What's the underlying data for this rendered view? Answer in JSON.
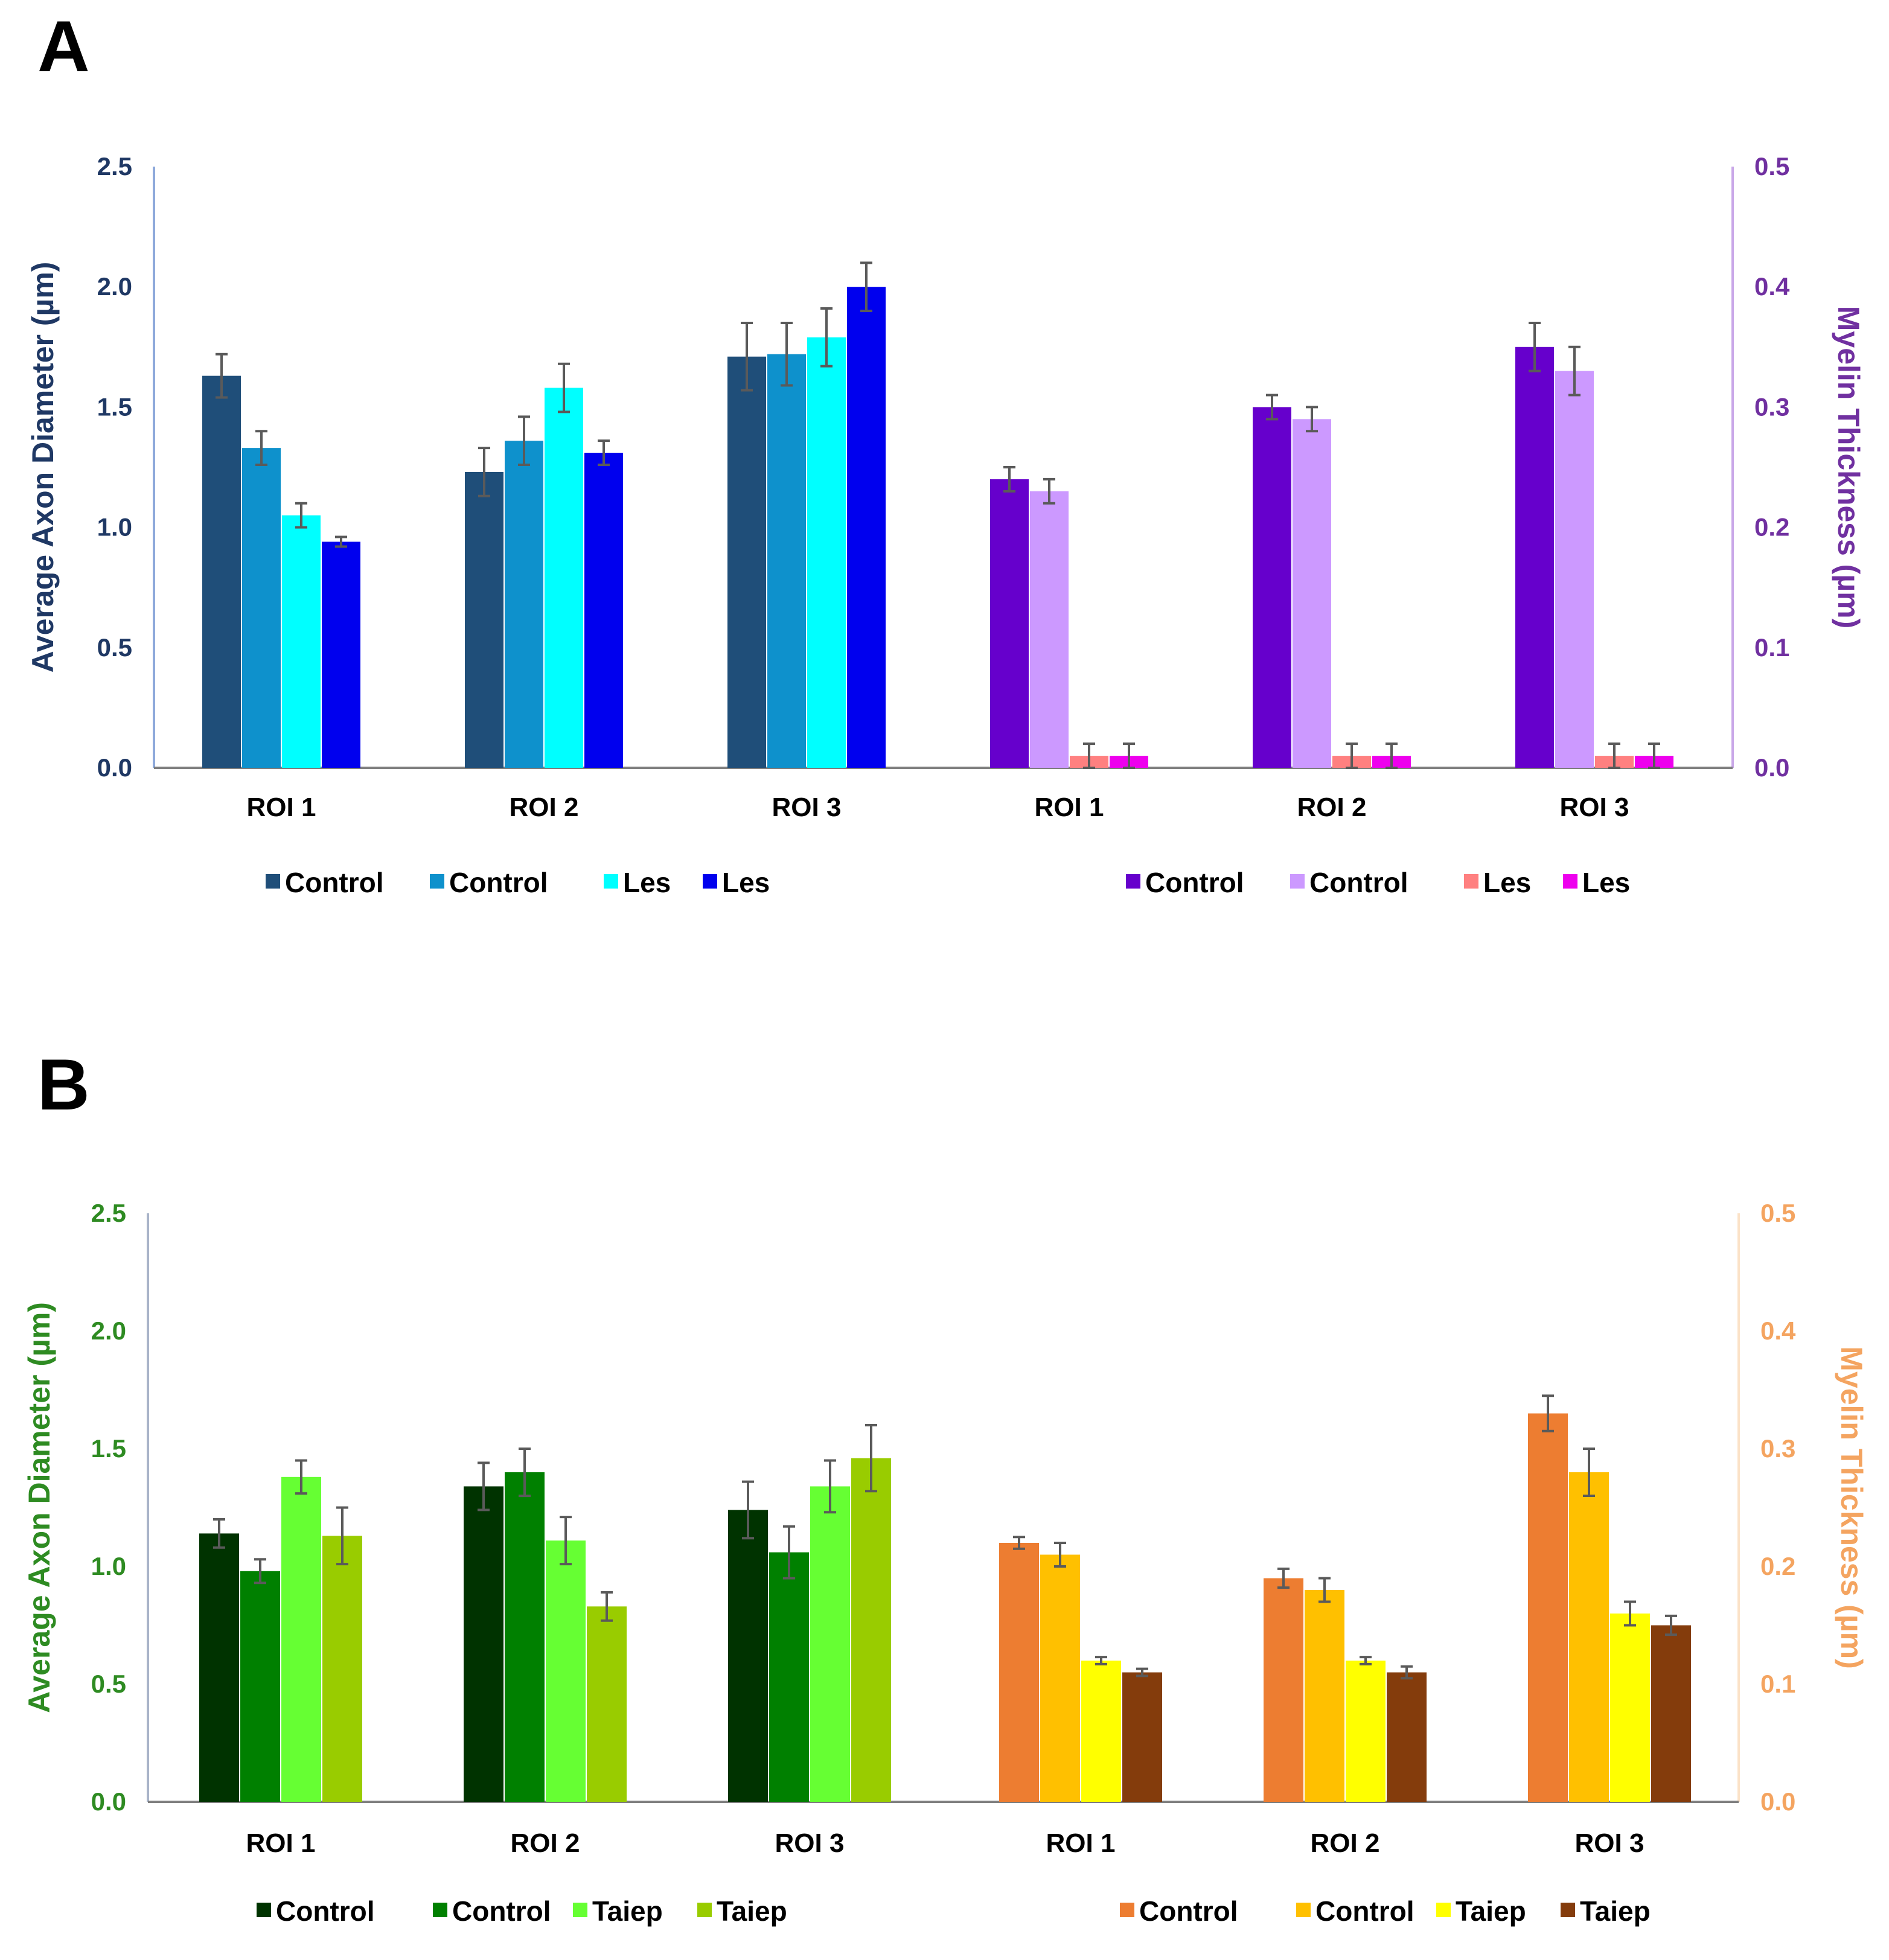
{
  "chart_data": [
    {
      "panel": "A",
      "type": "bar",
      "left_axis": {
        "title": "Average Axon Diameter (µm)",
        "ylim": [
          0,
          2.5
        ],
        "ticks": [
          "0.0",
          "0.5",
          "1.0",
          "1.5",
          "2.0",
          "2.5"
        ],
        "color": "#1f3864"
      },
      "right_axis": {
        "title": "Myelin Thickness (µm)",
        "ylim": [
          0,
          0.5
        ],
        "ticks": [
          "0.0",
          "0.1",
          "0.2",
          "0.3",
          "0.4",
          "0.5"
        ],
        "color": "#7030a0"
      },
      "groups": [
        {
          "axis": "left",
          "categories": [
            "ROI 1",
            "ROI 2",
            "ROI 3"
          ],
          "series": [
            {
              "name": "Control",
              "color": "#1f4e79",
              "values": [
                1.63,
                1.23,
                1.71
              ],
              "errors": [
                0.09,
                0.1,
                0.14
              ]
            },
            {
              "name": "Control",
              "color": "#0e91cc",
              "values": [
                1.33,
                1.36,
                1.72
              ],
              "errors": [
                0.07,
                0.1,
                0.13
              ]
            },
            {
              "name": "Les",
              "color": "#00ffff",
              "values": [
                1.05,
                1.58,
                1.79
              ],
              "errors": [
                0.05,
                0.1,
                0.12
              ]
            },
            {
              "name": "Les",
              "color": "#0000ee",
              "values": [
                0.94,
                1.31,
                2.0
              ],
              "errors": [
                0.02,
                0.05,
                0.1
              ]
            }
          ]
        },
        {
          "axis": "right",
          "categories": [
            "ROI 1",
            "ROI 2",
            "ROI 3"
          ],
          "series": [
            {
              "name": "Control",
              "color": "#6600cc",
              "values": [
                0.24,
                0.3,
                0.35
              ],
              "errors": [
                0.01,
                0.01,
                0.02
              ]
            },
            {
              "name": "Control",
              "color": "#cc99ff",
              "values": [
                0.23,
                0.29,
                0.33
              ],
              "errors": [
                0.01,
                0.01,
                0.02
              ]
            },
            {
              "name": "Les",
              "color": "#ff8080",
              "values": [
                0.01,
                0.01,
                0.01
              ],
              "errors": [
                0.01,
                0.01,
                0.01
              ]
            },
            {
              "name": "Les",
              "color": "#ee00ee",
              "values": [
                0.01,
                0.01,
                0.01
              ],
              "errors": [
                0.01,
                0.01,
                0.01
              ]
            }
          ]
        }
      ]
    },
    {
      "panel": "B",
      "type": "bar",
      "left_axis": {
        "title": "Average Axon Diameter (µm)",
        "ylim": [
          0,
          2.5
        ],
        "ticks": [
          "0.0",
          "0.5",
          "1.0",
          "1.5",
          "2.0",
          "2.5"
        ],
        "color": "#2e8b22"
      },
      "right_axis": {
        "title": "Myelin Thickness (µm)",
        "ylim": [
          0,
          0.5
        ],
        "ticks": [
          "0.0",
          "0.1",
          "0.2",
          "0.3",
          "0.4",
          "0.5"
        ],
        "color": "#f4a460"
      },
      "groups": [
        {
          "axis": "left",
          "categories": [
            "ROI 1",
            "ROI 2",
            "ROI 3"
          ],
          "series": [
            {
              "name": "Control",
              "color": "#003300",
              "values": [
                1.14,
                1.34,
                1.24
              ],
              "errors": [
                0.06,
                0.1,
                0.12
              ]
            },
            {
              "name": "Control",
              "color": "#008000",
              "values": [
                0.98,
                1.4,
                1.06
              ],
              "errors": [
                0.05,
                0.1,
                0.11
              ]
            },
            {
              "name": "Taiep",
              "color": "#66ff33",
              "values": [
                1.38,
                1.11,
                1.34
              ],
              "errors": [
                0.07,
                0.1,
                0.11
              ]
            },
            {
              "name": "Taiep",
              "color": "#99cc00",
              "values": [
                1.13,
                0.83,
                1.46
              ],
              "errors": [
                0.12,
                0.06,
                0.14
              ]
            }
          ]
        },
        {
          "axis": "right",
          "categories": [
            "ROI 1",
            "ROI 2",
            "ROI 3"
          ],
          "series": [
            {
              "name": "Control",
              "color": "#ed7d31",
              "values": [
                0.22,
                0.19,
                0.33
              ],
              "errors": [
                0.005,
                0.008,
                0.015
              ]
            },
            {
              "name": "Control",
              "color": "#ffc000",
              "values": [
                0.21,
                0.18,
                0.28
              ],
              "errors": [
                0.01,
                0.01,
                0.02
              ]
            },
            {
              "name": "Taiep",
              "color": "#ffff00",
              "values": [
                0.12,
                0.12,
                0.16
              ],
              "errors": [
                0.003,
                0.003,
                0.01
              ]
            },
            {
              "name": "Taiep",
              "color": "#843c0c",
              "values": [
                0.11,
                0.11,
                0.15
              ],
              "errors": [
                0.003,
                0.005,
                0.008
              ]
            }
          ]
        }
      ]
    }
  ]
}
